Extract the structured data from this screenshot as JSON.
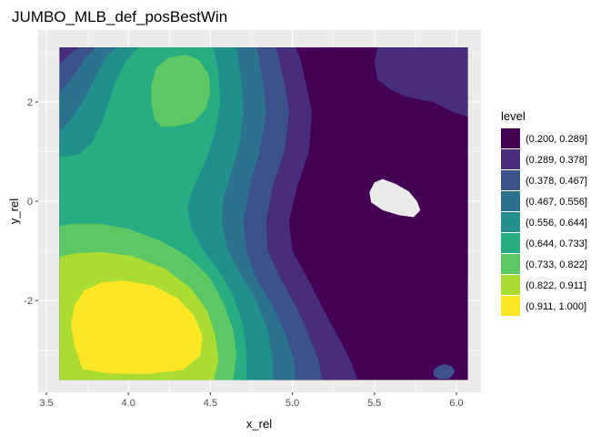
{
  "chart_data": {
    "type": "filled-contour",
    "title": "JUMBO_MLB_def_posBestWin",
    "xlabel": "x_rel",
    "ylabel": "y_rel",
    "xlim": [
      3.45,
      6.15
    ],
    "ylim": [
      -3.85,
      3.45
    ],
    "data_xrange": [
      3.58,
      6.07
    ],
    "data_yrange": [
      -3.6,
      3.1
    ],
    "x_ticks": [
      3.5,
      4.0,
      4.5,
      5.0,
      5.5,
      6.0
    ],
    "x_tick_labels": [
      "3.5",
      "4.0",
      "4.5",
      "5.0",
      "5.5",
      "6.0"
    ],
    "y_ticks": [
      -2,
      0,
      2
    ],
    "y_tick_labels": [
      "-2",
      "0",
      "2"
    ],
    "grid": true,
    "legend_position": "right",
    "legend": {
      "title": "level",
      "items": [
        {
          "label": "(0.200, 0.289]",
          "color": "#440154"
        },
        {
          "label": "(0.289, 0.378]",
          "color": "#472D7B"
        },
        {
          "label": "(0.378, 0.467]",
          "color": "#3B528B"
        },
        {
          "label": "(0.467, 0.556]",
          "color": "#2C728E"
        },
        {
          "label": "(0.556, 0.644]",
          "color": "#21908C"
        },
        {
          "label": "(0.644, 0.733]",
          "color": "#27AD81"
        },
        {
          "label": "(0.733, 0.822]",
          "color": "#5DC863"
        },
        {
          "label": "(0.822, 0.911]",
          "color": "#AADC32"
        },
        {
          "label": "(0.911, 1.000]",
          "color": "#FDE725"
        }
      ]
    },
    "regions": [
      {
        "level": 2,
        "points": [
          [
            3.58,
            -3.6
          ],
          [
            5.4,
            -3.6
          ],
          [
            5.36,
            -3.25
          ],
          [
            5.3,
            -2.85
          ],
          [
            5.2,
            -2.25
          ],
          [
            5.1,
            -1.6
          ],
          [
            5.0,
            -1.0
          ],
          [
            4.98,
            -0.4
          ],
          [
            5.03,
            0.3
          ],
          [
            5.1,
            1.0
          ],
          [
            5.12,
            1.8
          ],
          [
            5.08,
            2.4
          ],
          [
            5.05,
            2.85
          ],
          [
            5.02,
            3.1
          ],
          [
            3.58,
            3.1
          ]
        ]
      },
      {
        "level": 3,
        "points": [
          [
            3.58,
            -3.6
          ],
          [
            5.18,
            -3.6
          ],
          [
            5.16,
            -3.2
          ],
          [
            5.1,
            -2.7
          ],
          [
            5.02,
            -2.1
          ],
          [
            4.92,
            -1.5
          ],
          [
            4.85,
            -1.0
          ],
          [
            4.84,
            -0.4
          ],
          [
            4.88,
            0.3
          ],
          [
            4.95,
            1.0
          ],
          [
            4.98,
            1.8
          ],
          [
            4.95,
            2.4
          ],
          [
            4.92,
            2.85
          ],
          [
            4.9,
            3.1
          ],
          [
            3.7,
            3.1
          ],
          [
            3.62,
            2.9
          ],
          [
            3.58,
            2.75
          ]
        ]
      },
      {
        "level": 4,
        "points": [
          [
            3.58,
            -3.6
          ],
          [
            5.02,
            -3.6
          ],
          [
            5.01,
            -3.2
          ],
          [
            4.96,
            -2.7
          ],
          [
            4.88,
            -2.1
          ],
          [
            4.78,
            -1.55
          ],
          [
            4.72,
            -1.0
          ],
          [
            4.7,
            -0.4
          ],
          [
            4.74,
            0.3
          ],
          [
            4.8,
            1.0
          ],
          [
            4.84,
            1.8
          ],
          [
            4.82,
            2.4
          ],
          [
            4.8,
            2.85
          ],
          [
            4.78,
            3.1
          ],
          [
            3.8,
            3.1
          ],
          [
            3.74,
            2.9
          ],
          [
            3.66,
            2.5
          ],
          [
            3.58,
            2.2
          ]
        ]
      },
      {
        "level": 5,
        "points": [
          [
            3.58,
            -3.6
          ],
          [
            4.88,
            -3.6
          ],
          [
            4.88,
            -3.2
          ],
          [
            4.85,
            -2.6
          ],
          [
            4.78,
            -2.0
          ],
          [
            4.68,
            -1.45
          ],
          [
            4.6,
            -0.95
          ],
          [
            4.57,
            -0.4
          ],
          [
            4.58,
            0.1
          ],
          [
            4.63,
            0.6
          ],
          [
            4.68,
            1.2
          ],
          [
            4.7,
            1.8
          ],
          [
            4.69,
            2.4
          ],
          [
            4.67,
            2.85
          ],
          [
            4.66,
            3.1
          ],
          [
            3.93,
            3.1
          ],
          [
            3.86,
            2.9
          ],
          [
            3.8,
            2.5
          ],
          [
            3.72,
            2.0
          ],
          [
            3.64,
            1.6
          ],
          [
            3.58,
            1.4
          ]
        ]
      },
      {
        "level": 6,
        "points": [
          [
            3.58,
            -3.6
          ],
          [
            4.72,
            -3.6
          ],
          [
            4.72,
            -3.1
          ],
          [
            4.7,
            -2.5
          ],
          [
            4.64,
            -1.9
          ],
          [
            4.55,
            -1.4
          ],
          [
            4.45,
            -0.95
          ],
          [
            4.38,
            -0.5
          ],
          [
            4.36,
            -0.1
          ],
          [
            4.4,
            0.3
          ],
          [
            4.47,
            0.8
          ],
          [
            4.53,
            1.4
          ],
          [
            4.56,
            2.0
          ],
          [
            4.55,
            2.6
          ],
          [
            4.52,
            3.1
          ],
          [
            4.06,
            3.1
          ],
          [
            3.98,
            2.8
          ],
          [
            3.92,
            2.4
          ],
          [
            3.88,
            2.0
          ],
          [
            3.84,
            1.6
          ],
          [
            3.78,
            1.2
          ],
          [
            3.7,
            0.95
          ],
          [
            3.62,
            0.9
          ],
          [
            3.58,
            0.9
          ]
        ]
      },
      {
        "level": 7,
        "points": [
          [
            3.58,
            -3.6
          ],
          [
            4.64,
            -3.6
          ],
          [
            4.66,
            -3.1
          ],
          [
            4.64,
            -2.6
          ],
          [
            4.58,
            -2.05
          ],
          [
            4.5,
            -1.55
          ],
          [
            4.36,
            -1.1
          ],
          [
            4.2,
            -0.8
          ],
          [
            4.0,
            -0.55
          ],
          [
            3.82,
            -0.45
          ],
          [
            3.66,
            -0.45
          ],
          [
            3.58,
            -0.5
          ]
        ]
      },
      {
        "level": 7,
        "points": [
          [
            4.2,
            1.5
          ],
          [
            4.3,
            1.52
          ],
          [
            4.4,
            1.6
          ],
          [
            4.47,
            1.85
          ],
          [
            4.5,
            2.2
          ],
          [
            4.49,
            2.55
          ],
          [
            4.43,
            2.85
          ],
          [
            4.35,
            2.95
          ],
          [
            4.25,
            2.9
          ],
          [
            4.17,
            2.7
          ],
          [
            4.14,
            2.35
          ],
          [
            4.14,
            1.95
          ],
          [
            4.16,
            1.65
          ]
        ]
      },
      {
        "level": 8,
        "points": [
          [
            3.58,
            -3.6
          ],
          [
            4.52,
            -3.6
          ],
          [
            4.55,
            -3.2
          ],
          [
            4.53,
            -2.7
          ],
          [
            4.48,
            -2.2
          ],
          [
            4.38,
            -1.75
          ],
          [
            4.22,
            -1.35
          ],
          [
            4.02,
            -1.1
          ],
          [
            3.82,
            -1.02
          ],
          [
            3.68,
            -1.05
          ],
          [
            3.58,
            -1.12
          ]
        ]
      },
      {
        "level": 9,
        "points": [
          [
            3.72,
            -3.38
          ],
          [
            3.88,
            -3.47
          ],
          [
            4.12,
            -3.48
          ],
          [
            4.33,
            -3.4
          ],
          [
            4.44,
            -3.1
          ],
          [
            4.45,
            -2.7
          ],
          [
            4.4,
            -2.3
          ],
          [
            4.3,
            -1.95
          ],
          [
            4.15,
            -1.7
          ],
          [
            3.98,
            -1.6
          ],
          [
            3.84,
            -1.63
          ],
          [
            3.73,
            -1.8
          ],
          [
            3.67,
            -2.1
          ],
          [
            3.65,
            -2.5
          ],
          [
            3.67,
            -2.9
          ]
        ]
      },
      {
        "level": 1,
        "points": [
          [
            5.18,
            3.1
          ],
          [
            5.24,
            2.8
          ],
          [
            5.22,
            2.4
          ],
          [
            5.27,
            1.9
          ],
          [
            5.29,
            1.2
          ],
          [
            5.26,
            0.5
          ],
          [
            5.24,
            -0.1
          ],
          [
            5.28,
            -0.7
          ],
          [
            5.36,
            -1.3
          ],
          [
            5.5,
            -1.7
          ],
          [
            5.68,
            -1.88
          ],
          [
            5.86,
            -1.88
          ],
          [
            6.0,
            -1.75
          ],
          [
            6.07,
            -1.65
          ],
          [
            6.07,
            1.7
          ],
          [
            5.98,
            1.8
          ],
          [
            5.86,
            2.0
          ],
          [
            5.7,
            2.1
          ],
          [
            5.6,
            2.25
          ],
          [
            5.52,
            2.45
          ],
          [
            5.5,
            2.8
          ],
          [
            5.52,
            3.1
          ]
        ]
      },
      {
        "level": 2,
        "points": [
          [
            5.52,
            3.1
          ],
          [
            5.5,
            2.8
          ],
          [
            5.52,
            2.45
          ],
          [
            5.6,
            2.25
          ],
          [
            5.7,
            2.1
          ],
          [
            5.86,
            2.0
          ],
          [
            5.98,
            1.8
          ],
          [
            6.07,
            1.7
          ],
          [
            6.07,
            3.1
          ]
        ]
      },
      {
        "level": 3,
        "points": [
          [
            5.93,
            -3.28
          ],
          [
            5.97,
            -3.32
          ],
          [
            5.99,
            -3.4
          ],
          [
            5.98,
            -3.5
          ],
          [
            5.95,
            -3.58
          ],
          [
            5.89,
            -3.58
          ],
          [
            5.86,
            -3.5
          ],
          [
            5.86,
            -3.4
          ],
          [
            5.89,
            -3.32
          ]
        ]
      },
      {
        "level": 0,
        "points": [
          [
            5.55,
            0.45
          ],
          [
            5.63,
            0.35
          ],
          [
            5.71,
            0.2
          ],
          [
            5.76,
            0.0
          ],
          [
            5.78,
            -0.18
          ],
          [
            5.74,
            -0.32
          ],
          [
            5.65,
            -0.28
          ],
          [
            5.55,
            -0.18
          ],
          [
            5.48,
            -0.02
          ],
          [
            5.47,
            0.18
          ],
          [
            5.5,
            0.38
          ]
        ]
      }
    ]
  }
}
